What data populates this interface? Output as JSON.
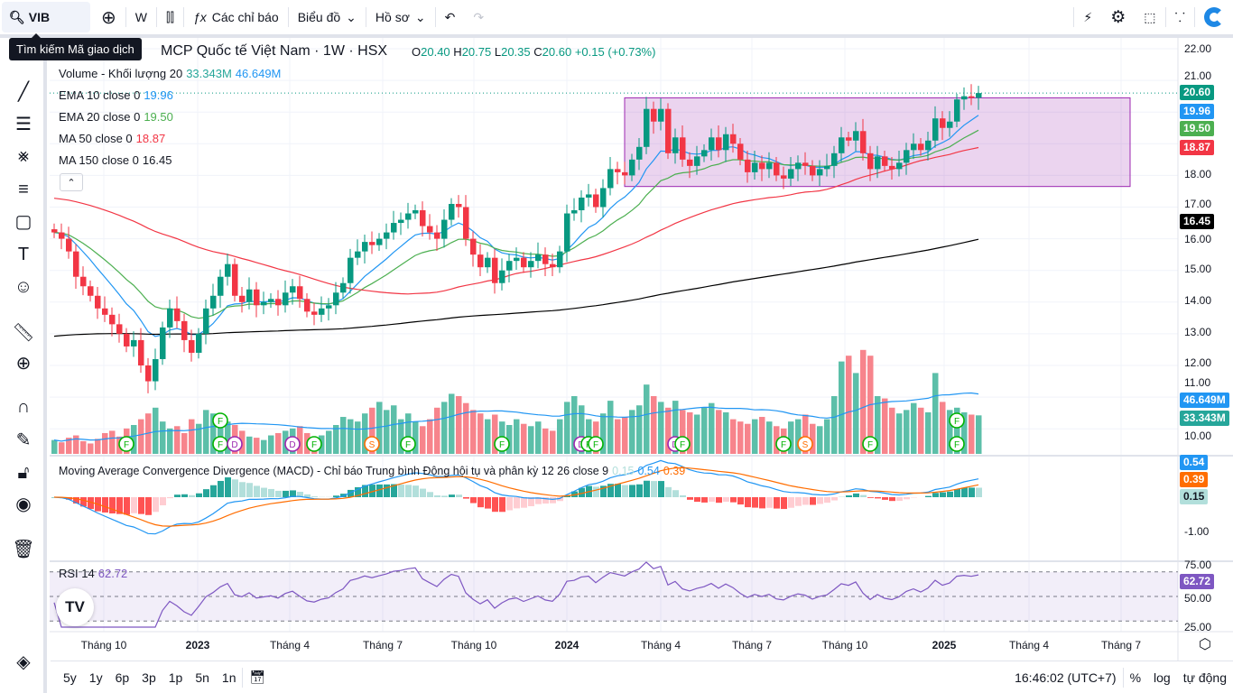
{
  "toolbar": {
    "symbol": "VIB",
    "search_tooltip": "Tìm kiếm Mã giao dịch",
    "interval": "W",
    "indicators_label": "Các chỉ báo",
    "chart_label": "Biểu đồ",
    "profile_label": "Hồ sơ"
  },
  "header": {
    "title": "MCP Quốc tế Việt Nam · 1W · HSX",
    "ohlc": {
      "o_label": "O",
      "o": "20.40",
      "h_label": "H",
      "h": "20.75",
      "l_label": "L",
      "l": "20.35",
      "c_label": "C",
      "c": "20.60",
      "change": "+0.15 (+0.73%)"
    }
  },
  "legends": {
    "volume": {
      "name": "Volume - Khối lượng 20",
      "v1": "33.343M",
      "v2": "46.649M"
    },
    "ema10": {
      "name": "EMA 10 close 0",
      "value": "19.96"
    },
    "ema20": {
      "name": "EMA 20 close 0",
      "value": "19.50"
    },
    "ma50": {
      "name": "MA 50 close 0",
      "value": "18.87"
    },
    "ma150": {
      "name": "MA 150 close 0",
      "value": "16.45"
    },
    "macd": {
      "name": "Moving Average Convergence Divergence (MACD) - Chỉ báo Trung bình Động hội tụ và phân kỳ 12 26 close 9",
      "hist": "0.15",
      "macd": "0.54",
      "signal": "0.39"
    },
    "rsi": {
      "name": "RSI 14",
      "value": "62.72"
    }
  },
  "price_axis": [
    "22.00",
    "21.00",
    "18.00",
    "17.00",
    "16.00",
    "15.00",
    "14.00",
    "13.00",
    "12.00",
    "11.00",
    "10.00"
  ],
  "price_labels": {
    "last": "20.60",
    "ema10": "19.96",
    "ema20": "19.50",
    "ma50": "18.87",
    "ma150": "16.45",
    "vol_ma": "46.649M",
    "vol": "33.343M",
    "macd": "0.54",
    "signal": "0.39",
    "hist": "0.15",
    "rsi": "62.72"
  },
  "macd_axis": [
    "-1.00"
  ],
  "rsi_axis": [
    "75.00",
    "50.00",
    "25.00"
  ],
  "time_axis": [
    "Tháng 10",
    "2023",
    "Tháng 4",
    "Tháng 7",
    "Tháng 10",
    "2024",
    "Tháng 4",
    "Tháng 7",
    "Tháng 10",
    "2025",
    "Tháng 4",
    "Tháng 7"
  ],
  "colors": {
    "up": "#089981",
    "down": "#f23645",
    "ema10": "#2196f3",
    "ema20": "#4caf50",
    "ma50": "#f23645",
    "ma150": "#000000",
    "macd": "#2196f3",
    "signal": "#ff6d00",
    "rsi": "#7e57c2",
    "rect": "#9c27b0"
  },
  "chart_data": {
    "type": "candlestick",
    "interval": "1W",
    "closes": [
      16.2,
      16.0,
      15.6,
      14.8,
      14.5,
      14.2,
      13.8,
      13.6,
      13.3,
      13.0,
      12.6,
      12.8,
      12.0,
      11.5,
      12.2,
      13.2,
      13.8,
      13.4,
      12.8,
      12.4,
      13.0,
      13.8,
      14.2,
      14.8,
      15.2,
      14.2,
      14.0,
      14.4,
      13.9,
      14.0,
      14.1,
      13.9,
      14.3,
      14.5,
      14.1,
      13.7,
      13.6,
      13.8,
      13.9,
      14.3,
      14.6,
      15.4,
      15.6,
      15.9,
      15.8,
      16.0,
      16.2,
      16.5,
      16.6,
      16.8,
      16.9,
      16.4,
      16.2,
      16.0,
      16.6,
      17.1,
      17.0,
      16.0,
      15.5,
      15.1,
      15.4,
      14.6,
      15.0,
      15.3,
      15.4,
      15.1,
      15.3,
      15.5,
      15.2,
      15.1,
      15.6,
      16.8,
      16.9,
      17.3,
      17.4,
      17.0,
      17.6,
      18.2,
      18.1,
      18.0,
      18.5,
      18.9,
      20.1,
      19.7,
      20.1,
      18.7,
      19.2,
      18.5,
      18.3,
      18.6,
      18.8,
      19.2,
      18.8,
      19.3,
      19.0,
      18.5,
      18.1,
      18.4,
      18.2,
      18.4,
      18.0,
      17.9,
      18.2,
      18.4,
      18.3,
      18.0,
      18.2,
      18.3,
      18.7,
      19.2,
      19.1,
      19.4,
      18.7,
      18.2,
      18.6,
      18.3,
      18.2,
      18.4,
      18.8,
      19.0,
      18.8,
      19.1,
      19.8,
      19.5,
      19.7,
      20.4,
      20.5,
      20.45,
      20.6
    ],
    "volumes_m": [
      12,
      10,
      14,
      16,
      11,
      9,
      13,
      18,
      20,
      15,
      22,
      25,
      30,
      35,
      40,
      28,
      22,
      24,
      18,
      30,
      26,
      38,
      35,
      30,
      28,
      25,
      20,
      15,
      14,
      12,
      16,
      18,
      20,
      22,
      24,
      18,
      14,
      16,
      20,
      25,
      32,
      30,
      28,
      35,
      40,
      45,
      38,
      42,
      30,
      35,
      28,
      24,
      30,
      40,
      45,
      52,
      50,
      44,
      38,
      35,
      30,
      34,
      28,
      25,
      30,
      26,
      24,
      28,
      22,
      20,
      30,
      45,
      50,
      42,
      30,
      28,
      35,
      46,
      30,
      32,
      38,
      42,
      60,
      50,
      45,
      40,
      46,
      38,
      36,
      34,
      40,
      44,
      38,
      36,
      30,
      28,
      26,
      30,
      32,
      28,
      24,
      22,
      28,
      30,
      34,
      26,
      24,
      30,
      50,
      80,
      85,
      70,
      90,
      85,
      50,
      48,
      40,
      35,
      38,
      44,
      40,
      36,
      70,
      45,
      38,
      40,
      36,
      34,
      33.343
    ],
    "events": [
      {
        "bar": 10,
        "label": "F"
      },
      {
        "bar": 23,
        "label": "F"
      },
      {
        "bar": 23,
        "label": "F",
        "stack": 1
      },
      {
        "bar": 25,
        "label": "D"
      },
      {
        "bar": 33,
        "label": "D"
      },
      {
        "bar": 36,
        "label": "F"
      },
      {
        "bar": 44,
        "label": "S"
      },
      {
        "bar": 49,
        "label": "F"
      },
      {
        "bar": 62,
        "label": "F"
      },
      {
        "bar": 73,
        "label": "D"
      },
      {
        "bar": 74,
        "label": "F"
      },
      {
        "bar": 75,
        "label": "F"
      },
      {
        "bar": 86,
        "label": "D"
      },
      {
        "bar": 87,
        "label": "F"
      },
      {
        "bar": 101,
        "label": "F"
      },
      {
        "bar": 104,
        "label": "S"
      },
      {
        "bar": 113,
        "label": "F"
      },
      {
        "bar": 125,
        "label": "F"
      },
      {
        "bar": 125,
        "label": "F",
        "stack": 1
      }
    ],
    "rectangle": {
      "price_from": 17.65,
      "price_to": 20.45,
      "bar_from": 79,
      "bar_to": 149
    },
    "ylim": [
      9.7,
      22.3
    ],
    "rsi_levels": [
      70,
      50,
      30
    ]
  },
  "bottom": {
    "ranges": [
      "5y",
      "1y",
      "6p",
      "3p",
      "1p",
      "5n",
      "1n"
    ],
    "clock": "16:46:02 (UTC+7)",
    "percent": "%",
    "log": "log",
    "auto": "tự động"
  }
}
